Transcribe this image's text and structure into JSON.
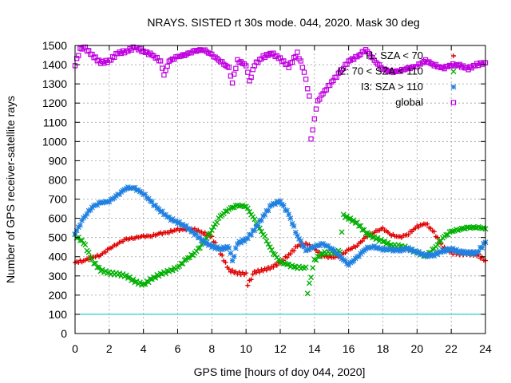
{
  "chart_data": {
    "type": "scatter",
    "title": "NRAYS. SISTED rt 30s mode. 044, 2020. Mask 30 deg",
    "xlabel": "GPS time [hours of doy 044, 2020]",
    "ylabel": "Number of GPS receiver-satellite rays",
    "xlim": [
      0,
      24
    ],
    "ylim": [
      0,
      1500
    ],
    "xticks": [
      0,
      2,
      4,
      6,
      8,
      10,
      12,
      14,
      16,
      18,
      20,
      22,
      24
    ],
    "yticks": [
      0,
      100,
      200,
      300,
      400,
      500,
      600,
      700,
      800,
      900,
      1000,
      1100,
      1200,
      1300,
      1400,
      1500
    ],
    "grid": true,
    "legend_position": "top-right",
    "threshold_line": {
      "y": 100,
      "color": "#00c0c0"
    },
    "series": [
      {
        "name": "I1: SZA < 70",
        "marker": "plus",
        "color": "#e00000",
        "points": [
          [
            0,
            370
          ],
          [
            0.5,
            380
          ],
          [
            1,
            395
          ],
          [
            1.5,
            410
          ],
          [
            2,
            440
          ],
          [
            2.5,
            470
          ],
          [
            3,
            490
          ],
          [
            3.5,
            500
          ],
          [
            4,
            505
          ],
          [
            4.5,
            510
          ],
          [
            5,
            520
          ],
          [
            5.5,
            530
          ],
          [
            6,
            540
          ],
          [
            6.5,
            545
          ],
          [
            7,
            540
          ],
          [
            7.5,
            525
          ],
          [
            8,
            500
          ],
          [
            8.5,
            420
          ],
          [
            9,
            330
          ],
          [
            9.5,
            315
          ],
          [
            10,
            310
          ],
          [
            10.1,
            255
          ],
          [
            10.5,
            320
          ],
          [
            11,
            330
          ],
          [
            11.5,
            345
          ],
          [
            12,
            370
          ],
          [
            12.5,
            410
          ],
          [
            13,
            455
          ],
          [
            13.5,
            470
          ],
          [
            14,
            440
          ],
          [
            14.5,
            405
          ],
          [
            15,
            395
          ],
          [
            15.5,
            405
          ],
          [
            16,
            435
          ],
          [
            16.5,
            460
          ],
          [
            17,
            500
          ],
          [
            17.5,
            530
          ],
          [
            18,
            545
          ],
          [
            18.5,
            515
          ],
          [
            19,
            500
          ],
          [
            19.5,
            520
          ],
          [
            20,
            555
          ],
          [
            20.5,
            575
          ],
          [
            21,
            525
          ],
          [
            21.5,
            450
          ],
          [
            22,
            420
          ],
          [
            22.5,
            415
          ],
          [
            23,
            415
          ],
          [
            23.5,
            410
          ],
          [
            24,
            380
          ]
        ]
      },
      {
        "name": "I2: 70 < SZA < 110",
        "marker": "x",
        "color": "#00b000",
        "points": [
          [
            0,
            510
          ],
          [
            0.5,
            475
          ],
          [
            1,
            380
          ],
          [
            1.5,
            330
          ],
          [
            2,
            315
          ],
          [
            2.5,
            310
          ],
          [
            3,
            300
          ],
          [
            3.5,
            270
          ],
          [
            4,
            255
          ],
          [
            4.5,
            285
          ],
          [
            5,
            310
          ],
          [
            5.5,
            325
          ],
          [
            6,
            345
          ],
          [
            6.5,
            385
          ],
          [
            7,
            420
          ],
          [
            7.5,
            470
          ],
          [
            8,
            540
          ],
          [
            8.5,
            610
          ],
          [
            9,
            650
          ],
          [
            9.5,
            665
          ],
          [
            10,
            665
          ],
          [
            10.5,
            590
          ],
          [
            11,
            520
          ],
          [
            11.5,
            430
          ],
          [
            12,
            375
          ],
          [
            12.5,
            355
          ],
          [
            13,
            345
          ],
          [
            13.5,
            340
          ],
          [
            13.6,
            215
          ],
          [
            14,
            380
          ],
          [
            14.5,
            420
          ],
          [
            15,
            420
          ],
          [
            15.5,
            430
          ],
          [
            15.7,
            615
          ],
          [
            16,
            600
          ],
          [
            16.5,
            575
          ],
          [
            17,
            525
          ],
          [
            17.5,
            500
          ],
          [
            18,
            480
          ],
          [
            18.5,
            460
          ],
          [
            19,
            455
          ],
          [
            19.5,
            445
          ],
          [
            20,
            420
          ],
          [
            20.5,
            405
          ],
          [
            21,
            440
          ],
          [
            21.5,
            500
          ],
          [
            22,
            530
          ],
          [
            22.5,
            545
          ],
          [
            23,
            550
          ],
          [
            23.5,
            555
          ],
          [
            24,
            545
          ]
        ]
      },
      {
        "name": "I3: SZA > 110",
        "marker": "asterisk",
        "color": "#2080e0",
        "points": [
          [
            0,
            520
          ],
          [
            0.5,
            600
          ],
          [
            1,
            660
          ],
          [
            1.5,
            680
          ],
          [
            2,
            690
          ],
          [
            2.5,
            720
          ],
          [
            3,
            760
          ],
          [
            3.5,
            755
          ],
          [
            4,
            730
          ],
          [
            4.5,
            680
          ],
          [
            5,
            640
          ],
          [
            5.5,
            600
          ],
          [
            6,
            580
          ],
          [
            6.5,
            555
          ],
          [
            7,
            520
          ],
          [
            7.5,
            480
          ],
          [
            8,
            455
          ],
          [
            8.5,
            440
          ],
          [
            9,
            450
          ],
          [
            9.2,
            375
          ],
          [
            9.5,
            470
          ],
          [
            10,
            490
          ],
          [
            10.5,
            540
          ],
          [
            11,
            610
          ],
          [
            11.5,
            670
          ],
          [
            12,
            690
          ],
          [
            12.5,
            620
          ],
          [
            13,
            510
          ],
          [
            13.5,
            430
          ],
          [
            14,
            455
          ],
          [
            14.5,
            465
          ],
          [
            15,
            445
          ],
          [
            15.5,
            400
          ],
          [
            16,
            360
          ],
          [
            16.5,
            395
          ],
          [
            17,
            445
          ],
          [
            17.5,
            450
          ],
          [
            18,
            440
          ],
          [
            18.5,
            435
          ],
          [
            19,
            435
          ],
          [
            19.5,
            440
          ],
          [
            20,
            425
          ],
          [
            20.5,
            405
          ],
          [
            21,
            410
          ],
          [
            21.5,
            430
          ],
          [
            22,
            440
          ],
          [
            22.5,
            425
          ],
          [
            23,
            420
          ],
          [
            23.5,
            420
          ],
          [
            24,
            475
          ]
        ]
      },
      {
        "name": "global",
        "marker": "square",
        "color": "#c000e0",
        "points": [
          [
            0,
            1400
          ],
          [
            0.3,
            1480
          ],
          [
            0.5,
            1495
          ],
          [
            1,
            1450
          ],
          [
            1.5,
            1410
          ],
          [
            2,
            1420
          ],
          [
            2.5,
            1460
          ],
          [
            3,
            1470
          ],
          [
            3.5,
            1490
          ],
          [
            4,
            1470
          ],
          [
            4.5,
            1450
          ],
          [
            5,
            1420
          ],
          [
            5.2,
            1345
          ],
          [
            5.5,
            1420
          ],
          [
            6,
            1440
          ],
          [
            6.5,
            1455
          ],
          [
            7,
            1470
          ],
          [
            7.5,
            1480
          ],
          [
            8,
            1450
          ],
          [
            8.5,
            1420
          ],
          [
            9,
            1380
          ],
          [
            9.2,
            1310
          ],
          [
            9.5,
            1420
          ],
          [
            10,
            1400
          ],
          [
            10.2,
            1310
          ],
          [
            10.5,
            1400
          ],
          [
            11,
            1440
          ],
          [
            11.5,
            1460
          ],
          [
            12,
            1430
          ],
          [
            12.5,
            1390
          ],
          [
            13,
            1460
          ],
          [
            13.3,
            1390
          ],
          [
            13.5,
            1320
          ],
          [
            13.7,
            1240
          ],
          [
            13.8,
            1010
          ],
          [
            14,
            1120
          ],
          [
            14.2,
            1210
          ],
          [
            14.5,
            1250
          ],
          [
            15,
            1310
          ],
          [
            15.5,
            1360
          ],
          [
            16,
            1420
          ],
          [
            16.5,
            1440
          ],
          [
            17,
            1480
          ],
          [
            17.5,
            1420
          ],
          [
            18,
            1380
          ],
          [
            18.5,
            1360
          ],
          [
            19,
            1370
          ],
          [
            19.5,
            1380
          ],
          [
            20,
            1395
          ],
          [
            20.5,
            1420
          ],
          [
            21,
            1400
          ],
          [
            21.5,
            1380
          ],
          [
            22,
            1400
          ],
          [
            22.5,
            1395
          ],
          [
            23,
            1380
          ],
          [
            23.5,
            1400
          ],
          [
            24,
            1410
          ]
        ]
      }
    ]
  }
}
